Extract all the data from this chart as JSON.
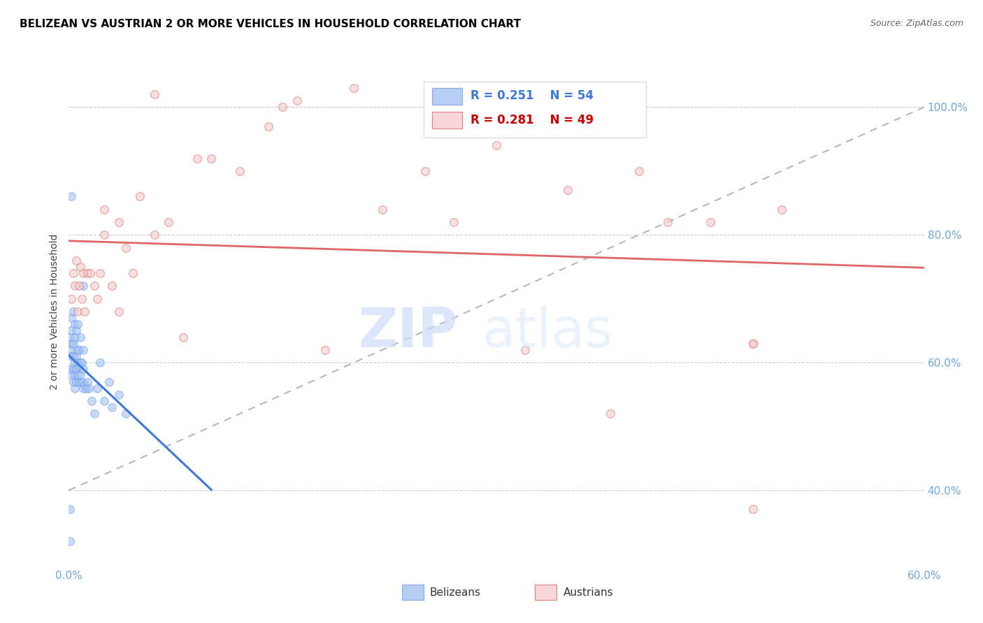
{
  "title": "BELIZEAN VS AUSTRIAN 2 OR MORE VEHICLES IN HOUSEHOLD CORRELATION CHART",
  "source": "Source: ZipAtlas.com",
  "ylabel": "2 or more Vehicles in Household",
  "watermark_zip": "ZIP",
  "watermark_atlas": "atlas",
  "xmin": 0.0,
  "xmax": 0.6,
  "ymin": 0.28,
  "ymax": 1.08,
  "right_yticks": [
    0.4,
    0.6,
    0.8,
    1.0
  ],
  "right_yticklabels": [
    "40.0%",
    "60.0%",
    "80.0%",
    "100.0%"
  ],
  "xtick_positions": [
    0.0,
    0.1,
    0.2,
    0.3,
    0.4,
    0.5,
    0.6
  ],
  "xtick_labels": [
    "0.0%",
    "",
    "",
    "",
    "",
    "",
    "60.0%"
  ],
  "blue_fill": "#a4c2f4",
  "pink_fill": "#f4cccc",
  "blue_edge": "#6d9eeb",
  "pink_edge": "#e06666",
  "blue_line_color": "#3c78d8",
  "pink_line_color": "#e06666",
  "ref_line_color": "#b7b7b7",
  "legend_blue_R": "R = 0.251",
  "legend_blue_N": "N = 54",
  "legend_pink_R": "R = 0.281",
  "legend_pink_N": "N = 49",
  "legend_blue_text_color": "#3c78d8",
  "legend_pink_text_color": "#cc0000",
  "axis_tick_color": "#6fa8dc",
  "marker_size": 70,
  "alpha": 0.6,
  "background_color": "#ffffff",
  "title_color": "#000000",
  "grid_color": "#cccccc",
  "belizean_x": [
    0.001,
    0.001,
    0.001,
    0.002,
    0.002,
    0.002,
    0.002,
    0.002,
    0.003,
    0.003,
    0.003,
    0.003,
    0.003,
    0.004,
    0.004,
    0.004,
    0.004,
    0.004,
    0.005,
    0.005,
    0.005,
    0.005,
    0.006,
    0.006,
    0.006,
    0.006,
    0.007,
    0.007,
    0.007,
    0.008,
    0.008,
    0.008,
    0.009,
    0.009,
    0.01,
    0.01,
    0.01,
    0.011,
    0.012,
    0.013,
    0.014,
    0.016,
    0.018,
    0.02,
    0.022,
    0.025,
    0.028,
    0.03,
    0.035,
    0.04,
    0.002,
    0.01,
    0.001,
    0.001
  ],
  "belizean_y": [
    0.59,
    0.62,
    0.64,
    0.58,
    0.61,
    0.63,
    0.65,
    0.67,
    0.57,
    0.59,
    0.61,
    0.63,
    0.68,
    0.56,
    0.58,
    0.6,
    0.64,
    0.66,
    0.57,
    0.59,
    0.61,
    0.65,
    0.58,
    0.6,
    0.62,
    0.66,
    0.57,
    0.595,
    0.62,
    0.58,
    0.6,
    0.64,
    0.57,
    0.6,
    0.56,
    0.59,
    0.62,
    0.565,
    0.56,
    0.57,
    0.56,
    0.54,
    0.52,
    0.56,
    0.6,
    0.54,
    0.57,
    0.53,
    0.55,
    0.52,
    0.86,
    0.72,
    0.37,
    0.32
  ],
  "austrian_x": [
    0.002,
    0.003,
    0.004,
    0.005,
    0.006,
    0.007,
    0.008,
    0.009,
    0.01,
    0.011,
    0.013,
    0.015,
    0.018,
    0.02,
    0.022,
    0.025,
    0.03,
    0.035,
    0.04,
    0.045,
    0.05,
    0.06,
    0.07,
    0.08,
    0.09,
    0.1,
    0.12,
    0.14,
    0.15,
    0.16,
    0.18,
    0.2,
    0.22,
    0.25,
    0.27,
    0.3,
    0.32,
    0.35,
    0.38,
    0.4,
    0.42,
    0.45,
    0.48,
    0.5,
    0.025,
    0.06,
    0.035,
    0.48,
    0.48
  ],
  "austrian_y": [
    0.7,
    0.74,
    0.72,
    0.76,
    0.68,
    0.72,
    0.75,
    0.7,
    0.74,
    0.68,
    0.74,
    0.74,
    0.72,
    0.7,
    0.74,
    0.8,
    0.72,
    0.82,
    0.78,
    0.74,
    0.86,
    0.8,
    0.82,
    0.64,
    0.92,
    0.92,
    0.9,
    0.97,
    1.0,
    1.01,
    0.62,
    1.03,
    0.84,
    0.9,
    0.82,
    0.94,
    0.62,
    0.87,
    0.52,
    0.9,
    0.82,
    0.82,
    0.37,
    0.84,
    0.84,
    1.02,
    0.68,
    0.63,
    0.63
  ]
}
